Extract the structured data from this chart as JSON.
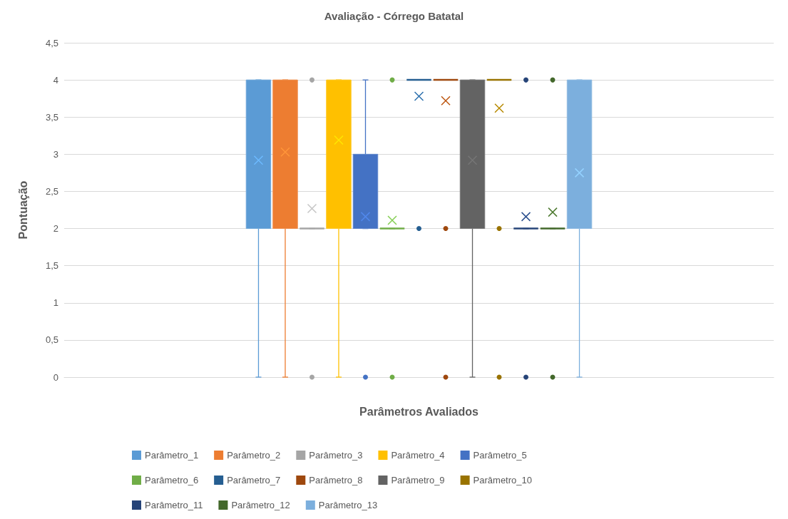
{
  "chart_data": {
    "type": "box",
    "title": "Avaliação - Córrego Batatal",
    "xlabel": "Parâmetros Avaliados",
    "ylabel": "Pontuação",
    "categories": [
      null
    ],
    "ylim": [
      0,
      4.5
    ],
    "yticks": [
      0,
      {
        "value": 0.5,
        "label": "0,5"
      },
      1,
      {
        "value": 1.5,
        "label": "1,5"
      },
      2,
      {
        "value": 2.5,
        "label": "2,5"
      },
      3,
      {
        "value": 3.5,
        "label": "3,5"
      },
      4,
      {
        "value": 4.5,
        "label": "4,5"
      }
    ],
    "grid": "y",
    "legend": "bottom",
    "series": [
      {
        "name": "Parâmetro_1",
        "color": "#5b9bd5",
        "boxes": [
          {
            "low": 0,
            "q1": 2,
            "median": 4,
            "q3": 4,
            "high": 4,
            "mean": 2.92
          }
        ]
      },
      {
        "name": "Parâmetro_2",
        "color": "#ed7d31",
        "boxes": [
          {
            "low": 0,
            "q1": 2,
            "median": 4,
            "q3": 4,
            "high": 4,
            "mean": 3.03
          }
        ]
      },
      {
        "name": "Parâmetro_3",
        "color": "#a5a5a5",
        "boxes": [
          {
            "low": 2,
            "q1": 2,
            "median": 2,
            "q3": 2,
            "high": 2,
            "mean": 2.27,
            "outliers": [
              4,
              0
            ]
          }
        ]
      },
      {
        "name": "Parâmetro_4",
        "color": "#ffc000",
        "boxes": [
          {
            "low": 0,
            "q1": 2,
            "median": 4,
            "q3": 4,
            "high": 4,
            "mean": 3.19
          }
        ]
      },
      {
        "name": "Parâmetro_5",
        "color": "#4472c4",
        "boxes": [
          {
            "low": 2,
            "q1": 2,
            "median": 2,
            "q3": 3,
            "high": 4,
            "mean": 2.16,
            "outliers": [
              0
            ]
          }
        ]
      },
      {
        "name": "Parâmetro_6",
        "color": "#70ad47",
        "boxes": [
          {
            "low": 2,
            "q1": 2,
            "median": 2,
            "q3": 2,
            "high": 2,
            "mean": 2.11,
            "outliers": [
              4,
              0
            ]
          }
        ]
      },
      {
        "name": "Parâmetro_7",
        "color": "#255e91",
        "boxes": [
          {
            "low": 4,
            "q1": 4,
            "median": 4,
            "q3": 4,
            "high": 4,
            "mean": 3.78,
            "outliers": [
              2
            ]
          }
        ]
      },
      {
        "name": "Parâmetro_8",
        "color": "#9e480e",
        "boxes": [
          {
            "low": 4,
            "q1": 4,
            "median": 4,
            "q3": 4,
            "high": 4,
            "mean": 3.72,
            "outliers": [
              2,
              0
            ]
          }
        ]
      },
      {
        "name": "Parâmetro_9",
        "color": "#636363",
        "boxes": [
          {
            "low": 0,
            "q1": 2,
            "median": 4,
            "q3": 4,
            "high": 4,
            "mean": 2.92
          }
        ]
      },
      {
        "name": "Parâmetro_10",
        "color": "#997300",
        "boxes": [
          {
            "low": 4,
            "q1": 4,
            "median": 4,
            "q3": 4,
            "high": 4,
            "mean": 3.62,
            "outliers": [
              2,
              0
            ]
          }
        ]
      },
      {
        "name": "Parâmetro_11",
        "color": "#264478",
        "boxes": [
          {
            "low": 2,
            "q1": 2,
            "median": 2,
            "q3": 2,
            "high": 2,
            "mean": 2.16,
            "outliers": [
              4,
              0
            ]
          }
        ]
      },
      {
        "name": "Parâmetro_12",
        "color": "#43682b",
        "boxes": [
          {
            "low": 2,
            "q1": 2,
            "median": 2,
            "q3": 2,
            "high": 2,
            "mean": 2.22,
            "outliers": [
              4,
              0
            ]
          }
        ]
      },
      {
        "name": "Parâmetro_13",
        "color": "#7cafdd",
        "boxes": [
          {
            "low": 0,
            "q1": 2,
            "median": 2,
            "q3": 4,
            "high": 4,
            "mean": 2.75
          }
        ]
      }
    ]
  }
}
